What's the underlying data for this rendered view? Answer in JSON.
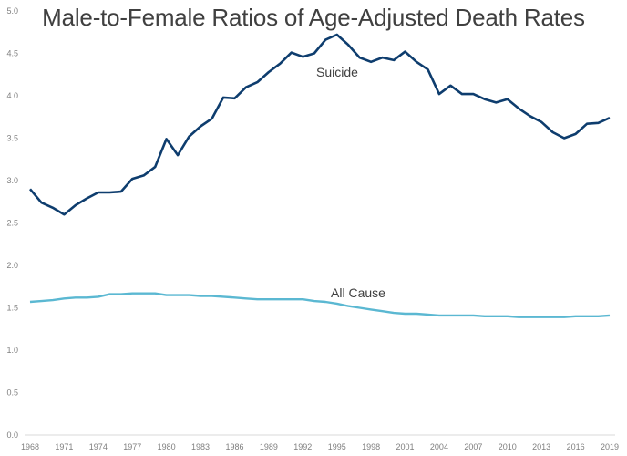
{
  "chart_data": {
    "type": "line",
    "title": "Male-to-Female Ratios of Age-Adjusted Death Rates",
    "xlabel": "",
    "ylabel": "",
    "ylim": [
      0,
      5.0
    ],
    "xlim": [
      1968,
      2019
    ],
    "y_ticks": [
      "0.0",
      "0.5",
      "1.0",
      "1.5",
      "2.0",
      "2.5",
      "3.0",
      "3.5",
      "4.0",
      "4.5",
      "5.0"
    ],
    "x_ticks": [
      "1968",
      "1971",
      "1974",
      "1977",
      "1980",
      "1983",
      "1986",
      "1989",
      "1992",
      "1995",
      "1998",
      "2001",
      "2004",
      "2007",
      "2010",
      "2013",
      "2016",
      "2019"
    ],
    "grid": false,
    "legend": "none (inline series labels)",
    "x": [
      1968,
      1969,
      1970,
      1971,
      1972,
      1973,
      1974,
      1975,
      1976,
      1977,
      1978,
      1979,
      1980,
      1981,
      1982,
      1983,
      1984,
      1985,
      1986,
      1987,
      1988,
      1989,
      1990,
      1991,
      1992,
      1993,
      1994,
      1995,
      1996,
      1997,
      1998,
      1999,
      2000,
      2001,
      2002,
      2003,
      2004,
      2005,
      2006,
      2007,
      2008,
      2009,
      2010,
      2011,
      2012,
      2013,
      2014,
      2015,
      2016,
      2017,
      2018,
      2019
    ],
    "series": [
      {
        "name": "Suicide",
        "color": "#0e3d6e",
        "values": [
          2.9,
          2.74,
          2.68,
          2.6,
          2.71,
          2.79,
          2.86,
          2.86,
          2.87,
          3.02,
          3.06,
          3.16,
          3.49,
          3.3,
          3.52,
          3.64,
          3.73,
          3.98,
          3.97,
          4.1,
          4.16,
          4.28,
          4.38,
          4.51,
          4.46,
          4.5,
          4.66,
          4.72,
          4.6,
          4.45,
          4.4,
          4.45,
          4.42,
          4.52,
          4.4,
          4.31,
          4.02,
          4.12,
          4.02,
          4.02,
          3.96,
          3.92,
          3.96,
          3.85,
          3.76,
          3.69,
          3.57,
          3.5,
          3.55,
          3.67,
          3.68,
          3.74
        ]
      },
      {
        "name": "All Cause",
        "color": "#5bb8d2",
        "values": [
          1.57,
          1.58,
          1.59,
          1.61,
          1.62,
          1.62,
          1.63,
          1.66,
          1.66,
          1.67,
          1.67,
          1.67,
          1.65,
          1.65,
          1.65,
          1.64,
          1.64,
          1.63,
          1.62,
          1.61,
          1.6,
          1.6,
          1.6,
          1.6,
          1.6,
          1.58,
          1.57,
          1.55,
          1.52,
          1.5,
          1.48,
          1.46,
          1.44,
          1.43,
          1.43,
          1.42,
          1.41,
          1.41,
          1.41,
          1.41,
          1.4,
          1.4,
          1.4,
          1.39,
          1.39,
          1.39,
          1.39,
          1.39,
          1.4,
          1.4,
          1.4,
          1.41
        ]
      }
    ]
  }
}
